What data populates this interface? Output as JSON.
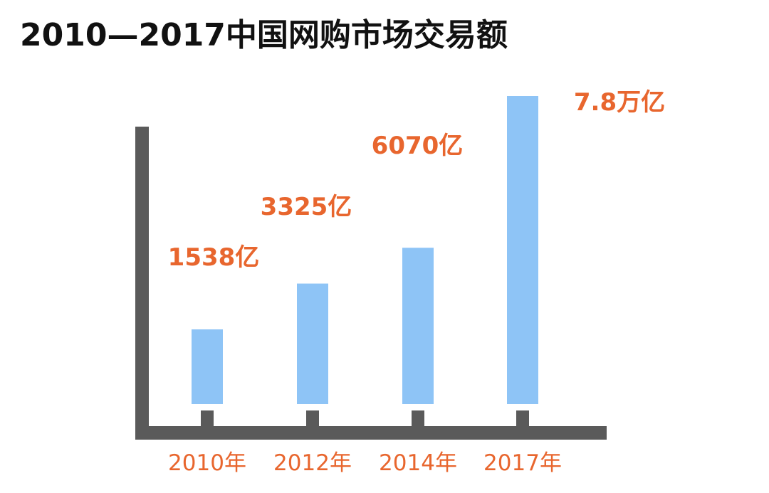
{
  "chart_data": {
    "type": "bar",
    "title": "2010—2017中国网购市场交易额",
    "categories": [
      "2010年",
      "2012年",
      "2014年",
      "2017年"
    ],
    "values": [
      1538,
      3325,
      6070,
      78000
    ],
    "data_labels": [
      "1538亿",
      "3325亿",
      "6070亿",
      "7.8万亿"
    ],
    "unit": "亿",
    "colors": {
      "bar": "#8ec4f6",
      "axis": "#5a5a5a",
      "label": "#e8662e",
      "title": "#111111"
    },
    "grid": false,
    "legend": "none"
  }
}
